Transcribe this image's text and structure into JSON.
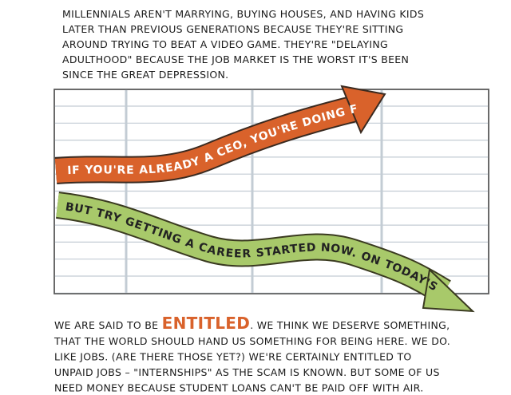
{
  "intro": {
    "lines": [
      "MILLENNIALS AREN'T MARRYING, BUYING HOUSES, AND HAVING KIDS",
      "LATER THAN PREVIOUS GENERATIONS BECAUSE THEY'RE SITTING",
      "AROUND TRYING TO BEAT A VIDEO GAME. THEY'RE \"DELAYING",
      "ADULTHOOD\" BECAUSE THE JOB MARKET IS THE WORST IT'S BEEN",
      "SINCE THE GREAT DEPRESSION."
    ]
  },
  "arrows": {
    "upper": "IF YOU'RE ALREADY A CEO, YOU'RE DOING FINE.",
    "lower": "BUT TRY GETTING A CAREER STARTED NOW. ON TODAY'S WAGES."
  },
  "outro": {
    "first_line": {
      "before": "WE ARE SAID TO BE ",
      "emphasis": "ENTITLED",
      "after": ". WE THINK WE DESERVE SOMETHING,"
    },
    "lines": [
      "THAT THE WORLD SHOULD HAND US SOMETHING FOR BEING HERE. WE DO.",
      "LIKE JOBS. (ARE THERE THOSE YET?) WE'RE CERTAINLY ENTITLED TO",
      "UNPAID JOBS – \"INTERNSHIPS\" AS THE SCAM IS KNOWN. BUT SOME OF US",
      "NEED MONEY BECAUSE STUDENT LOANS CAN'T BE PAID OFF WITH AIR."
    ]
  }
}
